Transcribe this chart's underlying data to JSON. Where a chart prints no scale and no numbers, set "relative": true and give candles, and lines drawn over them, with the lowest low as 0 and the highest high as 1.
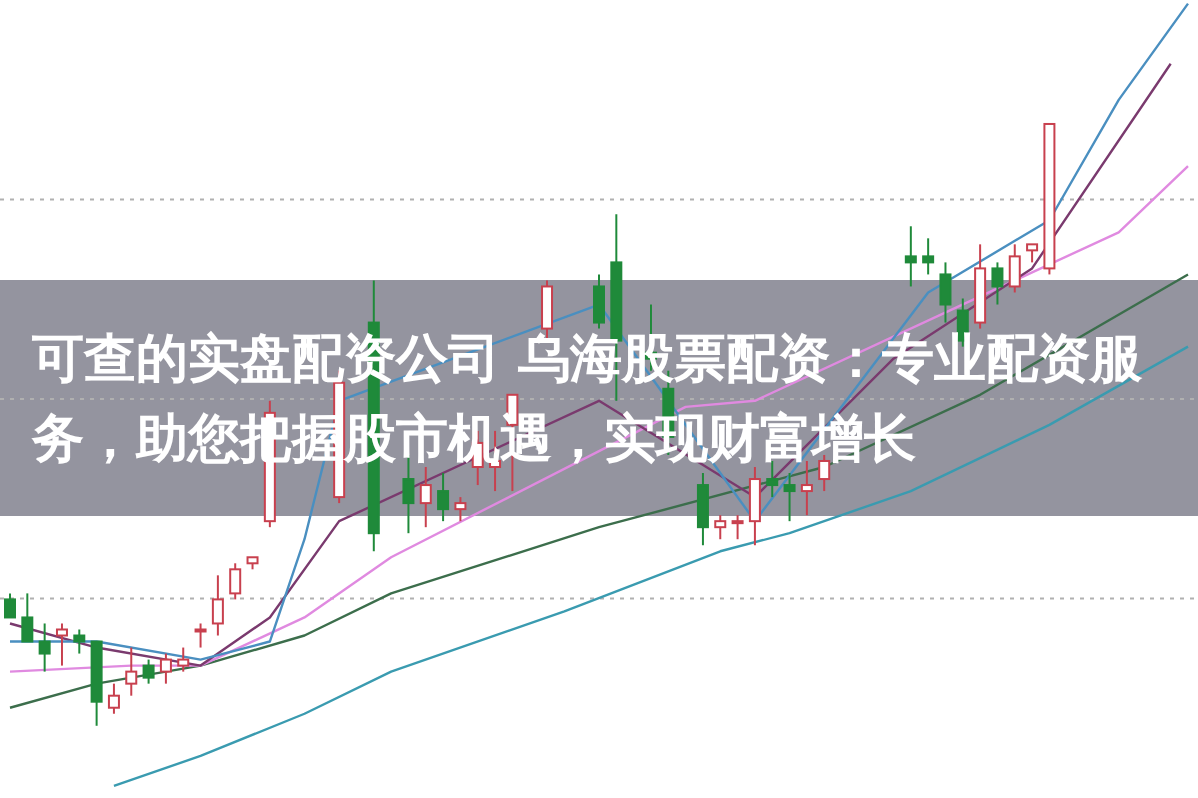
{
  "chart_data": {
    "type": "candlestick",
    "title": "可查的实盘配资公司 乌海股票配资：专业配资服务，助您把握股市机遇，实现财富增长",
    "relative": true,
    "grid": "y",
    "categories": [
      null,
      null,
      null,
      null,
      null,
      null,
      null,
      null,
      null,
      null,
      null,
      null,
      null,
      null,
      null,
      null,
      null,
      null,
      null,
      null,
      null,
      null,
      null,
      null,
      null,
      null,
      null,
      null,
      null,
      null,
      null,
      null,
      null,
      null,
      null,
      null,
      null,
      null,
      null,
      null,
      null,
      null,
      null,
      null,
      null,
      null,
      null,
      null,
      null,
      null,
      null,
      null,
      null,
      null,
      null,
      null,
      null,
      null,
      null,
      null,
      null,
      null,
      null,
      null,
      null,
      null,
      null,
      null,
      null
    ],
    "ohlc": [
      [
        0.21,
        0.22,
        0.18,
        0.18
      ],
      [
        0.18,
        0.22,
        0.14,
        0.14
      ],
      [
        0.14,
        0.17,
        0.09,
        0.12
      ],
      [
        0.15,
        0.17,
        0.1,
        0.16
      ],
      [
        0.15,
        0.16,
        0.12,
        0.14
      ],
      [
        0.14,
        0.14,
        0,
        0.04
      ],
      [
        0.03,
        0.07,
        0.02,
        0.05
      ],
      [
        0.07,
        0.13,
        0.05,
        0.09
      ],
      [
        0.1,
        0.11,
        0.07,
        0.08
      ],
      [
        0.09,
        0.12,
        0.07,
        0.11
      ],
      [
        0.1,
        0.13,
        0.09,
        0.11
      ],
      [
        0.16,
        0.17,
        0.13,
        0.16
      ],
      [
        0.17,
        0.25,
        0.15,
        0.21
      ],
      [
        0.22,
        0.27,
        0.21,
        0.26
      ],
      [
        0.27,
        0.28,
        0.26,
        0.28
      ],
      [
        0.34,
        0.54,
        0.33,
        0.52
      ],
      null,
      null,
      null,
      [
        0.38,
        0.59,
        0.37,
        0.57
      ],
      null,
      [
        0.67,
        0.74,
        0.29,
        0.32
      ],
      null,
      [
        0.41,
        0.45,
        0.32,
        0.37
      ],
      [
        0.37,
        0.43,
        0.33,
        0.4
      ],
      [
        0.39,
        0.42,
        0.34,
        0.36
      ],
      [
        0.36,
        0.38,
        0.34,
        0.37
      ],
      [
        0.43,
        0.49,
        0.4,
        0.47
      ],
      [
        0.43,
        0.49,
        0.39,
        0.44
      ],
      [
        0.5,
        0.55,
        0.39,
        0.55
      ],
      null,
      [
        0.66,
        0.74,
        0.64,
        0.73
      ],
      null,
      null,
      [
        0.73,
        0.75,
        0.66,
        0.67
      ],
      [
        0.77,
        0.85,
        0.54,
        0.64
      ],
      null,
      [
        0.62,
        0.7,
        0.59,
        0.61
      ],
      [
        0.56,
        0.59,
        0.45,
        0.48
      ],
      null,
      [
        0.4,
        0.42,
        0.3,
        0.33
      ],
      [
        0.33,
        0.35,
        0.31,
        0.34
      ],
      [
        0.34,
        0.35,
        0.31,
        0.34
      ],
      [
        0.34,
        0.43,
        0.3,
        0.41
      ],
      [
        0.41,
        0.44,
        0.38,
        0.4
      ],
      [
        0.4,
        0.42,
        0.34,
        0.39
      ],
      [
        0.39,
        0.44,
        0.35,
        0.4
      ],
      [
        0.41,
        0.45,
        0.39,
        0.44
      ],
      null,
      null,
      null,
      null,
      [
        0.78,
        0.83,
        0.73,
        0.77
      ],
      [
        0.78,
        0.81,
        0.75,
        0.77
      ],
      [
        0.75,
        0.77,
        0.67,
        0.7
      ],
      [
        0.69,
        0.71,
        0.63,
        0.64
      ],
      [
        0.67,
        0.8,
        0.66,
        0.76
      ],
      [
        0.76,
        0.77,
        0.7,
        0.73
      ],
      [
        0.73,
        0.8,
        0.72,
        0.78
      ],
      [
        0.79,
        0.8,
        0.77,
        0.8
      ],
      [
        0.76,
        1,
        0.75,
        1
      ],
      null,
      null,
      null,
      null,
      null,
      null,
      null,
      null
    ],
    "series": [
      {
        "type": "line",
        "color": "#3a9bb0",
        "values": [
          null,
          null,
          null,
          null,
          null,
          null,
          -0.1,
          null,
          null,
          null,
          null,
          -0.05,
          null,
          null,
          null,
          null,
          null,
          0.02,
          null,
          null,
          null,
          null,
          0.09,
          null,
          null,
          null,
          null,
          null,
          null,
          null,
          null,
          null,
          0.19,
          null,
          null,
          null,
          null,
          null,
          null,
          null,
          null,
          0.29,
          null,
          null,
          null,
          0.32,
          null,
          null,
          null,
          null,
          null,
          null,
          0.39,
          null,
          null,
          null,
          null,
          null,
          null,
          null,
          0.5,
          null,
          null,
          null,
          null,
          null,
          null,
          null,
          0.63
        ]
      },
      {
        "type": "line",
        "color": "#3c6e4c",
        "values": [
          0.03,
          null,
          null,
          null,
          null,
          0.07,
          null,
          null,
          null,
          null,
          null,
          0.1,
          null,
          null,
          null,
          null,
          null,
          0.15,
          null,
          null,
          null,
          null,
          0.22,
          null,
          null,
          null,
          null,
          null,
          null,
          null,
          null,
          null,
          null,
          null,
          0.33,
          null,
          null,
          null,
          null,
          null,
          null,
          null,
          null,
          null,
          null,
          null,
          null,
          0.43,
          null,
          null,
          null,
          null,
          null,
          null,
          null,
          null,
          0.55,
          null,
          null,
          null,
          null,
          null,
          null,
          null,
          null,
          null,
          null,
          null,
          0.75
        ]
      },
      {
        "type": "line",
        "color": "#e08ae0",
        "values": [
          0.09,
          null,
          null,
          null,
          null,
          null,
          null,
          0.1,
          null,
          null,
          null,
          0.1,
          null,
          null,
          null,
          null,
          null,
          0.18,
          null,
          null,
          null,
          null,
          0.28,
          null,
          null,
          null,
          null,
          null,
          null,
          null,
          null,
          null,
          null,
          null,
          null,
          null,
          null,
          null,
          null,
          0.53,
          null,
          null,
          null,
          0.54,
          null,
          null,
          null,
          null,
          null,
          null,
          null,
          null,
          null,
          null,
          null,
          null,
          null,
          null,
          null,
          null,
          null,
          null,
          null,
          null,
          0.82,
          null,
          null,
          null,
          0.93
        ]
      },
      {
        "type": "line",
        "color": "#7a3a6e",
        "values": [
          0.17,
          null,
          null,
          null,
          null,
          0.13,
          null,
          null,
          null,
          null,
          null,
          0.1,
          null,
          null,
          null,
          0.18,
          null,
          null,
          null,
          0.34,
          null,
          null,
          null,
          null,
          null,
          null,
          null,
          null,
          null,
          null,
          null,
          null,
          null,
          null,
          0.54,
          null,
          null,
          null,
          null,
          null,
          null,
          null,
          null,
          0.38,
          null,
          null,
          null,
          null,
          null,
          null,
          null,
          0.61,
          null,
          null,
          null,
          null,
          null,
          null,
          null,
          0.76,
          null,
          null,
          null,
          null,
          null,
          null,
          null,
          1.1,
          null
        ]
      },
      {
        "type": "line",
        "color": "#4a8fc0",
        "values": [
          0.14,
          null,
          null,
          null,
          null,
          0.14,
          null,
          null,
          null,
          null,
          null,
          0.11,
          null,
          null,
          null,
          0.14,
          null,
          0.31,
          null,
          0.54,
          null,
          null,
          null,
          null,
          null,
          null,
          null,
          null,
          null,
          null,
          null,
          null,
          null,
          null,
          0.7,
          null,
          null,
          null,
          null,
          null,
          null,
          null,
          null,
          0.34,
          null,
          null,
          null,
          null,
          null,
          null,
          null,
          null,
          null,
          0.72,
          null,
          null,
          null,
          null,
          null,
          null,
          0.84,
          null,
          null,
          null,
          1.04,
          null,
          null,
          null,
          1.2
        ]
      }
    ]
  }
}
